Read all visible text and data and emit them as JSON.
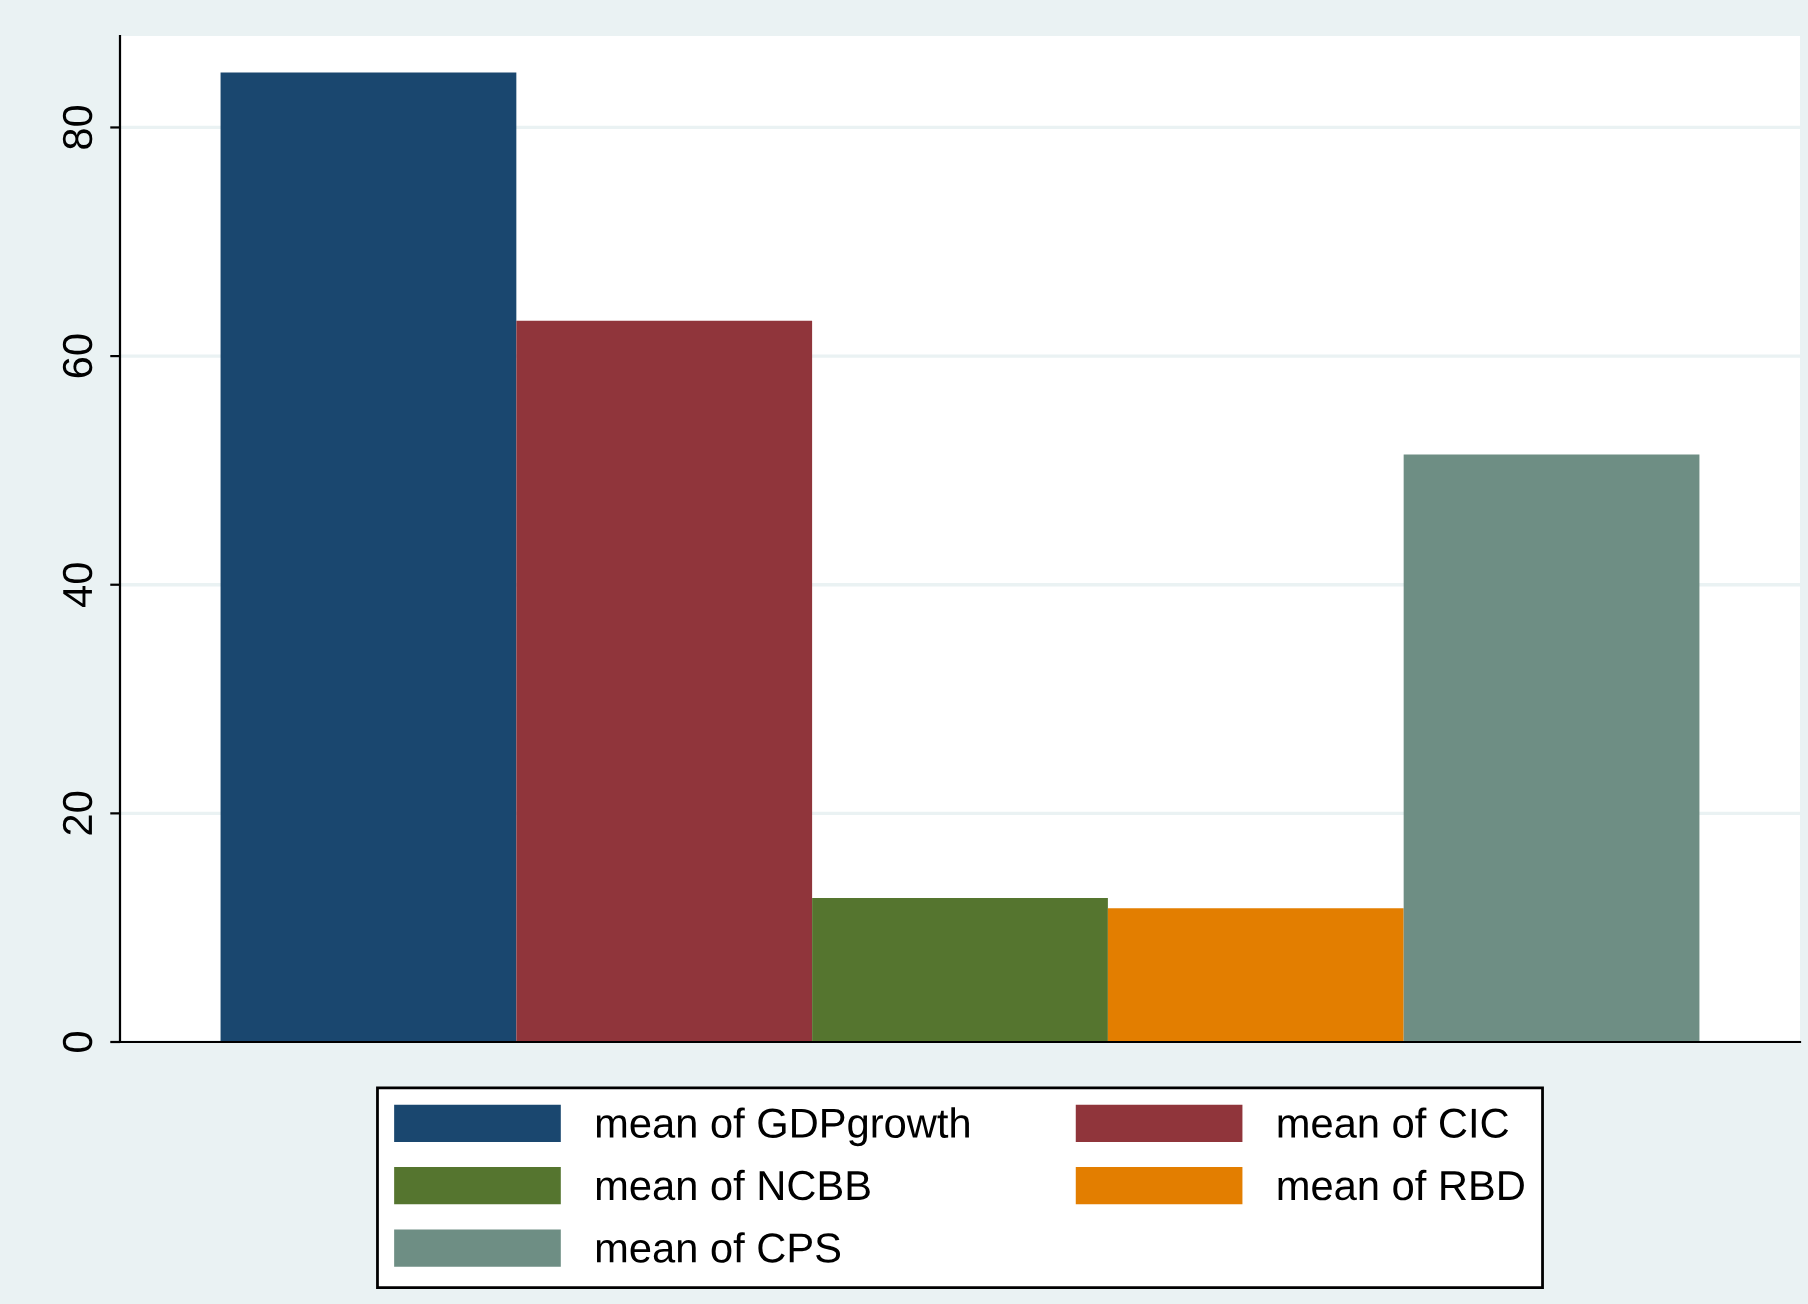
{
  "chart_data": {
    "type": "bar",
    "categories": [
      null
    ],
    "series": [
      {
        "name": "mean of GDPgrowth",
        "color": "#1a476f",
        "values": [
          84.8
        ]
      },
      {
        "name": "mean of CIC",
        "color": "#90353b",
        "values": [
          63.1
        ]
      },
      {
        "name": "mean of NCBB",
        "color": "#55752f",
        "values": [
          12.6
        ]
      },
      {
        "name": "mean of RBD",
        "color": "#e37e00",
        "values": [
          11.7
        ]
      },
      {
        "name": "mean of CPS",
        "color": "#6e8e84",
        "values": [
          51.4
        ]
      }
    ],
    "ylim": [
      0,
      88
    ],
    "yticks": [
      0,
      20,
      40,
      60,
      80
    ],
    "grid": "y",
    "legend": "bottom"
  }
}
